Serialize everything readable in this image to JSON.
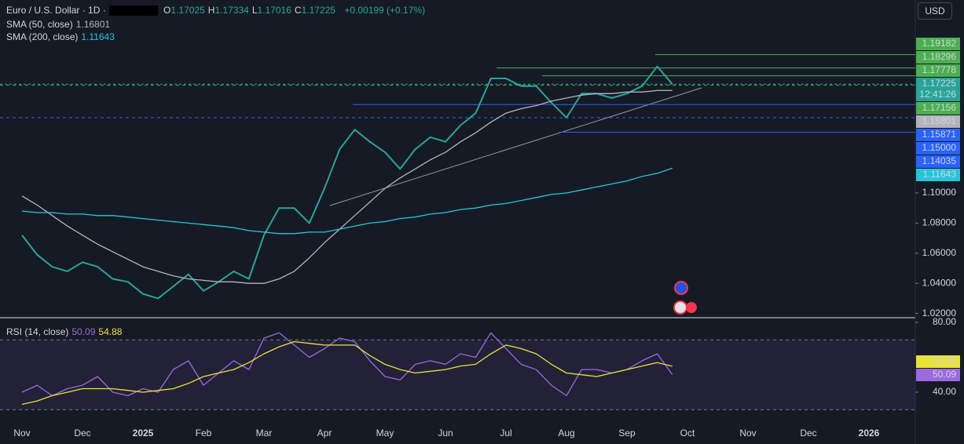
{
  "header": {
    "symbol": "Euro / U.S. Dollar · 1D ·",
    "currency": "USD"
  },
  "chart_data": [
    {
      "type": "line",
      "ohlc": [
        {
          "key": "O",
          "value": 1.17025
        },
        {
          "key": "H",
          "value": 1.17334
        },
        {
          "key": "L",
          "value": 1.17016
        },
        {
          "key": "C",
          "value": 1.17225
        }
      ],
      "change": "+0.00199 (+0.17%)",
      "countdown": "12:41:26",
      "categories": [
        "Nov",
        null,
        null,
        null,
        "Dec",
        null,
        null,
        null,
        "2025",
        null,
        null,
        null,
        "Feb",
        null,
        null,
        null,
        "Mar",
        null,
        null,
        null,
        "Apr",
        null,
        null,
        null,
        "May",
        null,
        null,
        null,
        "Jun",
        null,
        null,
        null,
        "Jul",
        null,
        null,
        null,
        "Aug",
        null,
        null,
        null,
        "Sep",
        null,
        null,
        null,
        "Oct",
        null,
        null,
        null,
        "Nov",
        null,
        null,
        null,
        "Dec",
        null,
        null,
        null,
        "2026",
        null,
        null,
        null
      ],
      "ylim": [
        1.0172,
        1.2281
      ],
      "yticks": [
        {
          "value": 1.02,
          "label": "1.02000"
        },
        {
          "value": 1.04,
          "label": "1.04000"
        },
        {
          "value": 1.06,
          "label": "1.06000"
        },
        {
          "value": 1.08,
          "label": "1.08000"
        },
        {
          "value": 1.1,
          "label": "1.10000"
        }
      ],
      "series": [
        {
          "color": "#26a69a",
          "values": [
            1.072,
            1.059,
            1.051,
            1.048,
            1.054,
            1.051,
            1.043,
            1.041,
            1.033,
            1.03,
            1.038,
            1.046,
            1.035,
            1.041,
            1.048,
            1.043,
            1.072,
            1.09,
            1.09,
            1.08,
            1.103,
            1.129,
            1.142,
            1.134,
            1.127,
            1.116,
            1.129,
            1.137,
            1.134,
            1.145,
            1.153,
            1.176,
            1.176,
            1.171,
            1.171,
            1.16,
            1.15,
            1.166,
            1.166,
            1.163,
            1.166,
            1.171,
            1.184,
            1.17225,
            null,
            null,
            null,
            null,
            null,
            null,
            null,
            null,
            null,
            null,
            null,
            null,
            null,
            null,
            null,
            null
          ]
        },
        {
          "name": "SMA (50, close)",
          "color": "#b2b5be",
          "values": [
            1.098,
            1.092,
            1.085,
            1.078,
            1.072,
            1.066,
            1.061,
            1.056,
            1.051,
            1.048,
            1.045,
            1.043,
            1.042,
            1.041,
            1.041,
            1.04,
            1.04,
            1.043,
            1.048,
            1.057,
            1.067,
            1.076,
            1.085,
            1.094,
            1.103,
            1.11,
            1.116,
            1.122,
            1.127,
            1.134,
            1.14,
            1.147,
            1.153,
            1.156,
            1.158,
            1.161,
            1.163,
            1.165,
            1.166,
            1.166,
            1.167,
            1.167,
            1.168,
            1.16801,
            null,
            null,
            null,
            null,
            null,
            null,
            null,
            null,
            null,
            null,
            null,
            null,
            null,
            null,
            null,
            null
          ]
        },
        {
          "name": "SMA (200, close)",
          "color": "#26c6da",
          "values": [
            1.088,
            1.087,
            1.087,
            1.086,
            1.086,
            1.085,
            1.085,
            1.084,
            1.083,
            1.082,
            1.081,
            1.08,
            1.079,
            1.078,
            1.077,
            1.075,
            1.074,
            1.073,
            1.073,
            1.074,
            1.074,
            1.076,
            1.078,
            1.08,
            1.081,
            1.083,
            1.084,
            1.086,
            1.087,
            1.089,
            1.09,
            1.092,
            1.093,
            1.095,
            1.097,
            1.099,
            1.1,
            1.102,
            1.104,
            1.106,
            1.108,
            1.111,
            1.113,
            1.11643,
            null,
            null,
            null,
            null,
            null,
            null,
            null,
            null,
            null,
            null,
            null,
            null,
            null,
            null,
            null,
            null
          ]
        }
      ],
      "price_levels": [
        {
          "value": 1.19182,
          "color": "#4caf50"
        },
        {
          "value": 1.18296,
          "color": "#4caf50"
        },
        {
          "value": 1.17778,
          "color": "#4caf50"
        },
        {
          "value": 1.17156,
          "color": "#4caf50"
        },
        {
          "value": 1.15871,
          "color": "#2962ff"
        },
        {
          "value": 1.15,
          "label": "1.15000",
          "color": "#2962ff"
        },
        {
          "value": 1.14035,
          "color": "#2962ff"
        }
      ]
    },
    {
      "type": "line",
      "title": "RSI (14, close)",
      "ylim": [
        22,
        82.7
      ],
      "yticks": [
        {
          "value": 80,
          "label": "80.00"
        },
        {
          "value": 40,
          "label": "40.00"
        }
      ],
      "bands": [
        30,
        70
      ],
      "series": [
        {
          "color": "#9c6ade",
          "values": [
            40,
            44,
            38,
            42,
            44,
            49,
            40,
            38,
            42,
            40,
            53,
            58,
            44,
            51,
            58,
            53,
            71,
            74,
            67,
            60,
            65,
            71,
            69,
            58,
            49,
            47,
            56,
            58,
            56,
            62,
            60,
            74,
            65,
            56,
            53,
            44,
            38,
            53,
            53,
            51,
            53,
            58,
            62,
            50.09,
            null,
            null,
            null,
            null,
            null,
            null,
            null,
            null,
            null,
            null,
            null,
            null,
            null,
            null,
            null,
            null
          ]
        },
        {
          "color": "#e8e337",
          "values": [
            33,
            35,
            38,
            40,
            42,
            42,
            42,
            41,
            40,
            41,
            42,
            45,
            49,
            51,
            53,
            57,
            62,
            66,
            69,
            68,
            67,
            67,
            67,
            61,
            56,
            53,
            51,
            52,
            53,
            55,
            56,
            62,
            67,
            65,
            62,
            56,
            51,
            50,
            49,
            51,
            53,
            55,
            57,
            54.88,
            null,
            null,
            null,
            null,
            null,
            null,
            null,
            null,
            null,
            null,
            null,
            null,
            null,
            null,
            null,
            null
          ]
        }
      ]
    }
  ]
}
